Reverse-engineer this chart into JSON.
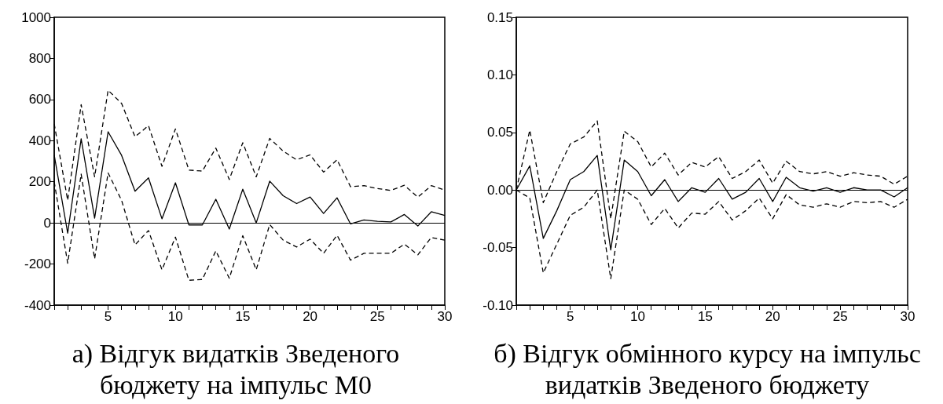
{
  "chart_data": [
    {
      "type": "line",
      "title": "а) Відгук видатків Зведеного бюджету на імпульс М0",
      "x": [
        1,
        2,
        3,
        4,
        5,
        6,
        7,
        8,
        9,
        10,
        11,
        12,
        13,
        14,
        15,
        16,
        17,
        18,
        19,
        20,
        21,
        22,
        23,
        24,
        25,
        26,
        27,
        28,
        29,
        30
      ],
      "series": [
        {
          "color": "#000000",
          "line_style": "solid",
          "values": [
            330,
            -50,
            409,
            23,
            443,
            329,
            154,
            219,
            20,
            195,
            -10,
            -10,
            115,
            -30,
            164,
            0,
            203,
            132,
            94,
            126,
            46,
            122,
            -5,
            14,
            8,
            5,
            41,
            -15,
            54,
            36
          ]
        },
        {
          "color": "#000000",
          "line_style": "dashed",
          "values": [
            482,
            110,
            575,
            224,
            645,
            581,
            419,
            473,
            275,
            457,
            257,
            252,
            364,
            211,
            390,
            224,
            411,
            349,
            307,
            331,
            247,
            307,
            176,
            181,
            167,
            158,
            183,
            125,
            181,
            160
          ]
        },
        {
          "color": "#000000",
          "line_style": "dashed",
          "values": [
            200,
            -196,
            237,
            -175,
            243,
            110,
            -107,
            -37,
            -228,
            -69,
            -279,
            -275,
            -136,
            -269,
            -62,
            -228,
            -8,
            -84,
            -117,
            -79,
            -148,
            -60,
            -181,
            -148,
            -148,
            -148,
            -103,
            -155,
            -71,
            -84
          ]
        }
      ],
      "xlim": [
        1,
        30
      ],
      "xticks": [
        {
          "value": 1,
          "label": null
        },
        {
          "value": 2,
          "label": null
        },
        {
          "value": 3,
          "label": null
        },
        {
          "value": 4,
          "label": null
        },
        5,
        {
          "value": 6,
          "label": null
        },
        {
          "value": 7,
          "label": null
        },
        {
          "value": 8,
          "label": null
        },
        {
          "value": 9,
          "label": null
        },
        10,
        {
          "value": 11,
          "label": null
        },
        {
          "value": 12,
          "label": null
        },
        {
          "value": 13,
          "label": null
        },
        {
          "value": 14,
          "label": null
        },
        15,
        {
          "value": 16,
          "label": null
        },
        {
          "value": 17,
          "label": null
        },
        {
          "value": 18,
          "label": null
        },
        {
          "value": 19,
          "label": null
        },
        20,
        {
          "value": 21,
          "label": null
        },
        {
          "value": 22,
          "label": null
        },
        {
          "value": 23,
          "label": null
        },
        {
          "value": 24,
          "label": null
        },
        25,
        {
          "value": 26,
          "label": null
        },
        {
          "value": 27,
          "label": null
        },
        {
          "value": 28,
          "label": null
        },
        {
          "value": 29,
          "label": null
        },
        30
      ],
      "ylim": [
        -400,
        1000
      ],
      "yticks": [
        -400,
        -200,
        0,
        200,
        400,
        600,
        800,
        1000
      ],
      "ref_lines": [
        {
          "axis": "y",
          "value": 0,
          "color": "#000000"
        }
      ],
      "grid": false,
      "marker": "none"
    },
    {
      "type": "line",
      "title": "б) Відгук обмінного курсу на імпульс видатків Зведеного бюджету",
      "x": [
        1,
        2,
        3,
        4,
        5,
        6,
        7,
        8,
        9,
        10,
        11,
        12,
        13,
        14,
        15,
        16,
        17,
        18,
        19,
        20,
        21,
        22,
        23,
        24,
        25,
        26,
        27,
        28,
        29,
        30
      ],
      "series": [
        {
          "color": "#000000",
          "line_style": "solid",
          "values": [
            0,
            0.021,
            -0.042,
            -0.018,
            0.009,
            0.016,
            0.03,
            -0.052,
            0.026,
            0.016,
            -0.005,
            0.009,
            -0.01,
            0.002,
            -0.002,
            0.01,
            -0.008,
            -0.002,
            0.01,
            -0.01,
            0.011,
            0.002,
            -0.001,
            0.002,
            -0.002,
            0.002,
            0,
            0,
            -0.006,
            0.002
          ]
        },
        {
          "color": "#000000",
          "line_style": "dashed",
          "values": [
            0,
            0.052,
            -0.011,
            0.016,
            0.04,
            0.046,
            0.06,
            -0.025,
            0.051,
            0.042,
            0.02,
            0.032,
            0.013,
            0.024,
            0.02,
            0.029,
            0.01,
            0.016,
            0.026,
            0.006,
            0.025,
            0.016,
            0.014,
            0.016,
            0.012,
            0.015,
            0.013,
            0.012,
            0.005,
            0.012
          ]
        },
        {
          "color": "#000000",
          "line_style": "dashed",
          "values": [
            0,
            -0.007,
            -0.072,
            -0.047,
            -0.022,
            -0.015,
            0,
            -0.077,
            0,
            -0.008,
            -0.03,
            -0.016,
            -0.033,
            -0.02,
            -0.021,
            -0.01,
            -0.026,
            -0.018,
            -0.007,
            -0.025,
            -0.004,
            -0.013,
            -0.015,
            -0.012,
            -0.015,
            -0.01,
            -0.011,
            -0.01,
            -0.015,
            -0.008
          ]
        }
      ],
      "xlim": [
        1,
        30
      ],
      "xticks": [
        {
          "value": 1,
          "label": null
        },
        {
          "value": 2,
          "label": null
        },
        {
          "value": 3,
          "label": null
        },
        {
          "value": 4,
          "label": null
        },
        5,
        {
          "value": 6,
          "label": null
        },
        {
          "value": 7,
          "label": null
        },
        {
          "value": 8,
          "label": null
        },
        {
          "value": 9,
          "label": null
        },
        10,
        {
          "value": 11,
          "label": null
        },
        {
          "value": 12,
          "label": null
        },
        {
          "value": 13,
          "label": null
        },
        {
          "value": 14,
          "label": null
        },
        15,
        {
          "value": 16,
          "label": null
        },
        {
          "value": 17,
          "label": null
        },
        {
          "value": 18,
          "label": null
        },
        {
          "value": 19,
          "label": null
        },
        20,
        {
          "value": 21,
          "label": null
        },
        {
          "value": 22,
          "label": null
        },
        {
          "value": 23,
          "label": null
        },
        {
          "value": 24,
          "label": null
        },
        25,
        {
          "value": 26,
          "label": null
        },
        {
          "value": 27,
          "label": null
        },
        {
          "value": 28,
          "label": null
        },
        {
          "value": 29,
          "label": null
        },
        30
      ],
      "ylim": [
        -0.1,
        0.15
      ],
      "yticks": [
        {
          "value": -0.1,
          "label": "-0.10"
        },
        {
          "value": -0.05,
          "label": "-0.05"
        },
        {
          "value": 0,
          "label": "0.00"
        },
        {
          "value": 0.05,
          "label": "0.05"
        },
        {
          "value": 0.1,
          "label": "0.10"
        },
        {
          "value": 0.15,
          "label": "0.15"
        }
      ],
      "ref_lines": [
        {
          "axis": "y",
          "value": 0,
          "color": "#000000"
        }
      ],
      "grid": false,
      "marker": "none"
    }
  ]
}
